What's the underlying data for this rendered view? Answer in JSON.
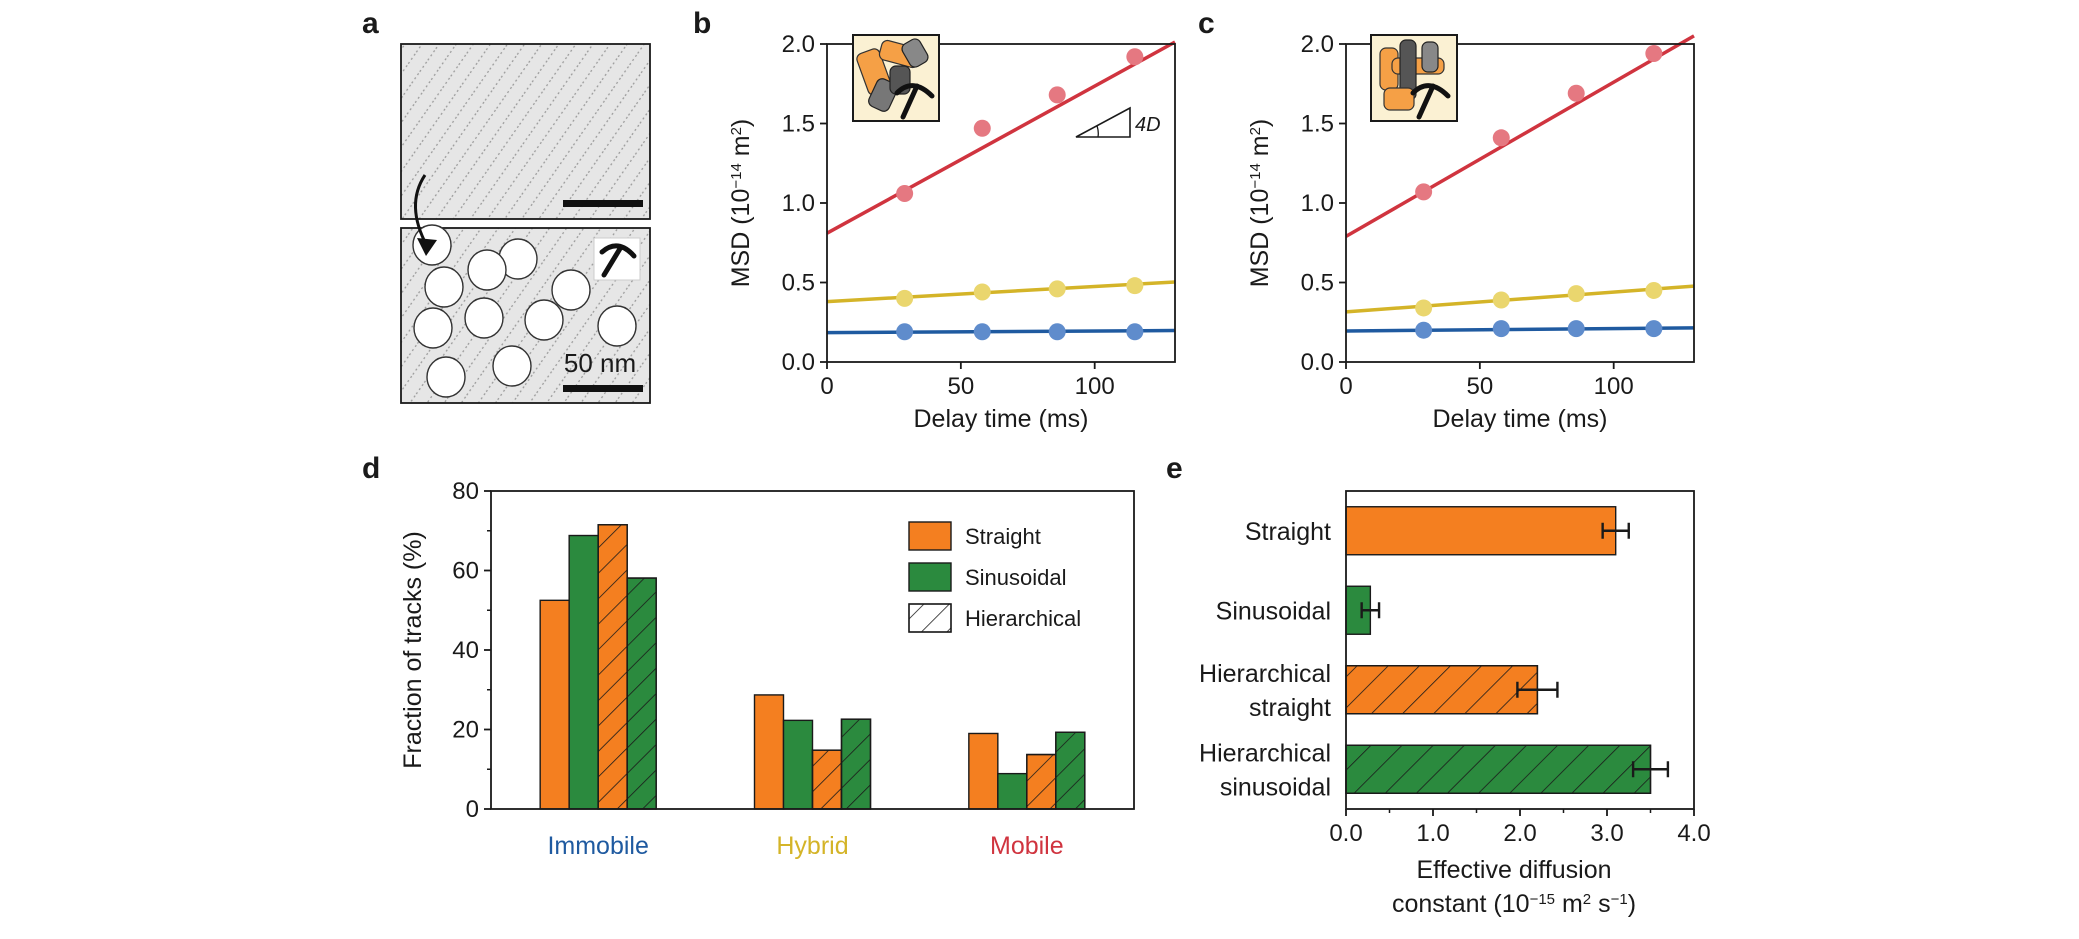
{
  "colors": {
    "straight": "#f47f20",
    "sinusoidal": "#2b8a3e",
    "immobile": "#1f5aa0",
    "hybrid": "#d4b428",
    "mobile": "#d0343f",
    "immobile_pt": "#5f8ccc",
    "hybrid_pt": "#ead66e",
    "mobile_pt": "#e57881",
    "axis": "#1a1a1a"
  },
  "panels": {
    "a": {
      "letter": "a",
      "scale_text": "50 nm",
      "icons": [
        "pickaxe-icon"
      ]
    },
    "b": {
      "letter": "b"
    },
    "c": {
      "letter": "c"
    },
    "d": {
      "letter": "d"
    },
    "e": {
      "letter": "e"
    }
  },
  "chart_data": [
    {
      "panel": "b",
      "type": "scatter",
      "xlabel": "Delay time (ms)",
      "ylabel_main": "MSD (10",
      "ylabel_exp": "−14",
      "ylabel_tail": " m",
      "ylabel_sup2": "2",
      "ylabel_close": ")",
      "xlim": [
        0,
        130
      ],
      "ylim": [
        0,
        2.0
      ],
      "xticks": [
        "0",
        "50",
        "100"
      ],
      "xtick_values": [
        0,
        50,
        100
      ],
      "yticks": [
        "0.0",
        "0.5",
        "1.0",
        "1.5",
        "2.0"
      ],
      "ytick_values": [
        0,
        0.5,
        1.0,
        1.5,
        2.0
      ],
      "annotation": "4D",
      "inset_icons": [
        "sinusoidal-channels-icon",
        "pickaxe-icon"
      ],
      "series": [
        {
          "key": "mobile",
          "x": [
            29,
            58,
            86,
            115
          ],
          "y": [
            1.06,
            1.47,
            1.68,
            1.92
          ],
          "fit": [
            0.81,
            0.00925
          ]
        },
        {
          "key": "hybrid",
          "x": [
            29,
            58,
            86,
            115
          ],
          "y": [
            0.4,
            0.44,
            0.46,
            0.48
          ],
          "fit": [
            0.38,
            0.00095
          ]
        },
        {
          "key": "immobile",
          "x": [
            29,
            58,
            86,
            115
          ],
          "y": [
            0.19,
            0.19,
            0.19,
            0.19
          ],
          "fit": [
            0.185,
            0.0001
          ]
        }
      ]
    },
    {
      "panel": "c",
      "type": "scatter",
      "xlabel": "Delay time (ms)",
      "ylabel_main": "MSD (10",
      "ylabel_exp": "−14",
      "ylabel_tail": " m",
      "ylabel_sup2": "2",
      "ylabel_close": ")",
      "xlim": [
        0,
        130
      ],
      "ylim": [
        0,
        2.0
      ],
      "xticks": [
        "0",
        "50",
        "100"
      ],
      "xtick_values": [
        0,
        50,
        100
      ],
      "yticks": [
        "0.0",
        "0.5",
        "1.0",
        "1.5",
        "2.0"
      ],
      "ytick_values": [
        0,
        0.5,
        1.0,
        1.5,
        2.0
      ],
      "inset_icons": [
        "straight-channels-icon",
        "pickaxe-icon"
      ],
      "series": [
        {
          "key": "mobile",
          "x": [
            29,
            58,
            86,
            115
          ],
          "y": [
            1.07,
            1.41,
            1.69,
            1.94
          ],
          "fit": [
            0.79,
            0.0097
          ]
        },
        {
          "key": "hybrid",
          "x": [
            29,
            58,
            86,
            115
          ],
          "y": [
            0.34,
            0.39,
            0.43,
            0.45
          ],
          "fit": [
            0.315,
            0.00125
          ]
        },
        {
          "key": "immobile",
          "x": [
            29,
            58,
            86,
            115
          ],
          "y": [
            0.2,
            0.21,
            0.21,
            0.21
          ],
          "fit": [
            0.195,
            0.00015
          ]
        }
      ]
    },
    {
      "panel": "d",
      "type": "bar",
      "ylabel": "Fraction of tracks (%)",
      "ylim": [
        0,
        80
      ],
      "yticks": [
        "0",
        "20",
        "40",
        "60",
        "80"
      ],
      "ytick_values": [
        0,
        20,
        40,
        60,
        80
      ],
      "categories": [
        "Immobile",
        "Hybrid",
        "Mobile"
      ],
      "category_colors": [
        "immobile",
        "hybrid",
        "mobile"
      ],
      "legend": [
        "Straight",
        "Sinusoidal",
        "Hierarchical"
      ],
      "legend_placement": "top-right",
      "series": [
        {
          "fill": "straight",
          "hatch": false,
          "values": [
            52.5,
            28.7,
            19.0
          ]
        },
        {
          "fill": "sinusoidal",
          "hatch": false,
          "values": [
            68.8,
            22.3,
            8.9
          ]
        },
        {
          "fill": "straight",
          "hatch": true,
          "values": [
            71.5,
            14.8,
            13.7
          ]
        },
        {
          "fill": "sinusoidal",
          "hatch": true,
          "values": [
            58.1,
            22.6,
            19.3
          ]
        }
      ]
    },
    {
      "panel": "e",
      "type": "bar",
      "orientation": "horizontal",
      "xlabel_line1": "Effective diffusion",
      "xlabel_line2_main": "constant (10",
      "xlabel_line2_exp": "−15",
      "xlabel_line2_mid": " m",
      "xlabel_line2_sup2": "2",
      "xlabel_line2_mid2": " s",
      "xlabel_line2_sup3": "−1",
      "xlabel_line2_close": ")",
      "xlim": [
        0,
        4.0
      ],
      "xticks": [
        "0.0",
        "1.0",
        "2.0",
        "3.0",
        "4.0"
      ],
      "xtick_values": [
        0,
        1,
        2,
        3,
        4
      ],
      "categories": [
        {
          "lines": [
            "Straight"
          ],
          "value": 3.1,
          "error": 0.15,
          "fill": "straight",
          "hatch": false
        },
        {
          "lines": [
            "Sinusoidal"
          ],
          "value": 0.28,
          "error": 0.1,
          "fill": "sinusoidal",
          "hatch": false
        },
        {
          "lines": [
            "Hierarchical",
            "straight"
          ],
          "value": 2.2,
          "error": 0.23,
          "fill": "straight",
          "hatch": true
        },
        {
          "lines": [
            "Hierarchical",
            "sinusoidal"
          ],
          "value": 3.5,
          "error": 0.2,
          "fill": "sinusoidal",
          "hatch": true
        }
      ]
    }
  ]
}
